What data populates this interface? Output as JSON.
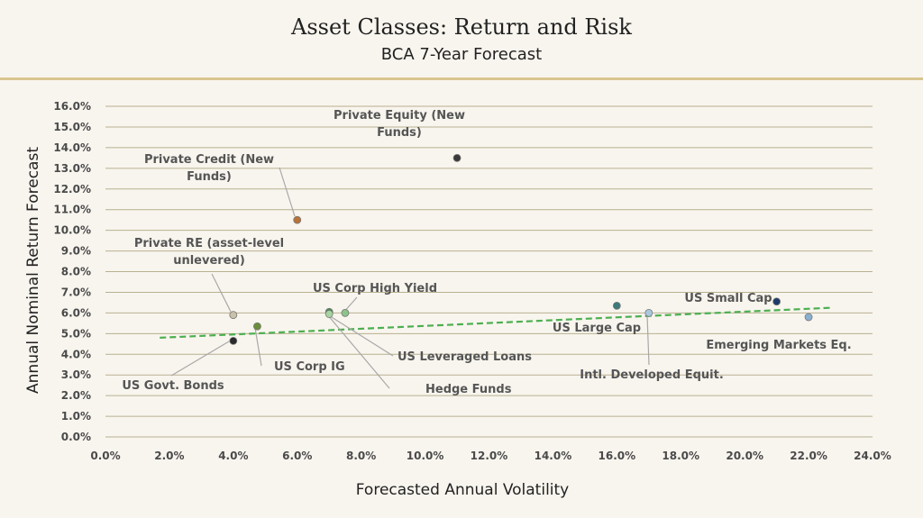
{
  "header": {
    "title": "Asset Classes: Return and Risk",
    "subtitle": "BCA 7-Year Forecast"
  },
  "colors": {
    "background": "#f8f5ee",
    "rule": "#d9c58f",
    "grid": "#b8b090",
    "trendline": "#4caf50"
  },
  "chart_data": {
    "type": "scatter",
    "title": "Asset Classes: Return and Risk",
    "subtitle": "BCA 7-Year Forecast",
    "xlabel": "Forecasted Annual Volatility",
    "ylabel": "Annual Nominal Return Forecast",
    "xlim": [
      0,
      24
    ],
    "ylim": [
      0,
      16
    ],
    "x_ticks": [
      "0.0%",
      "2.0%",
      "4.0%",
      "6.0%",
      "8.0%",
      "10.0%",
      "12.0%",
      "14.0%",
      "16.0%",
      "18.0%",
      "20.0%",
      "22.0%",
      "24.0%"
    ],
    "y_ticks": [
      "0.0%",
      "1.0%",
      "2.0%",
      "3.0%",
      "4.0%",
      "5.0%",
      "6.0%",
      "7.0%",
      "8.0%",
      "9.0%",
      "10.0%",
      "11.0%",
      "12.0%",
      "13.0%",
      "14.0%",
      "15.0%",
      "16.0%"
    ],
    "grid": "horizontal",
    "points": [
      {
        "label": [
          "Private Equity (New",
          "Funds)"
        ],
        "x": 11.0,
        "y": 13.5,
        "color": "#3a3a3a"
      },
      {
        "label": [
          "Private Credit (New",
          "Funds)"
        ],
        "x": 6.0,
        "y": 10.5,
        "color": "#b8733a"
      },
      {
        "label": [
          "Private RE (asset-level",
          "unlevered)"
        ],
        "x": 4.0,
        "y": 5.9,
        "color": "#c9c2a8"
      },
      {
        "label": [
          "US Govt. Bonds"
        ],
        "x": 4.0,
        "y": 4.65,
        "color": "#2a2a2a"
      },
      {
        "label": [
          "US Corp IG"
        ],
        "x": 4.75,
        "y": 5.35,
        "color": "#6b8e3a"
      },
      {
        "label": [
          "US Corp High Yield"
        ],
        "x": 7.5,
        "y": 6.0,
        "color": "#8bc48a"
      },
      {
        "label": [
          "US Leveraged Loans"
        ],
        "x": 7.0,
        "y": 6.05,
        "color": "#4a8a5a"
      },
      {
        "label": [
          "Hedge Funds"
        ],
        "x": 7.0,
        "y": 5.95,
        "color": "#a8d4a0"
      },
      {
        "label": [
          "US Large Cap"
        ],
        "x": 16.0,
        "y": 6.35,
        "color": "#3e7a7a"
      },
      {
        "label": [
          "Intl. Developed Equit."
        ],
        "x": 17.0,
        "y": 6.0,
        "color": "#a8c8e0"
      },
      {
        "label": [
          "US Small Cap"
        ],
        "x": 21.0,
        "y": 6.55,
        "color": "#1f3a6a"
      },
      {
        "label": [
          "Emerging Markets Eq."
        ],
        "x": 22.0,
        "y": 5.8,
        "color": "#8ab0d0"
      }
    ],
    "trendline": {
      "x": [
        1.7,
        22.7
      ],
      "y": [
        4.8,
        6.25
      ],
      "style": "dashed"
    }
  }
}
